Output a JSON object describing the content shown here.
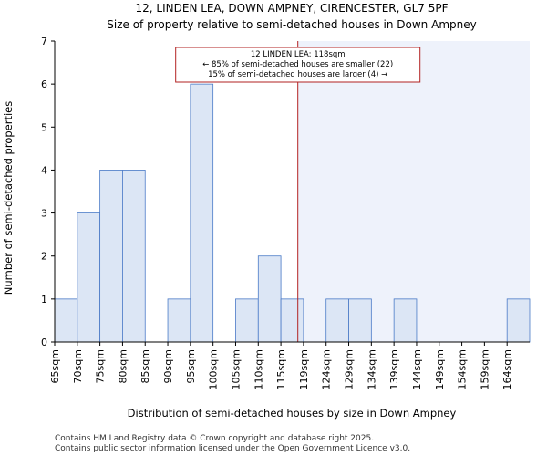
{
  "chart_data": {
    "type": "bar",
    "title": "12, LINDEN LEA, DOWN AMPNEY, CIRENCESTER, GL7 5PF",
    "subtitle": "Size of property relative to semi-detached houses in Down Ampney",
    "xlabel": "Distribution of semi-detached houses by size in Down Ampney",
    "ylabel": "Number of semi-detached properties",
    "categories": [
      "65sqm",
      "70sqm",
      "75sqm",
      "80sqm",
      "85sqm",
      "90sqm",
      "95sqm",
      "100sqm",
      "105sqm",
      "110sqm",
      "115sqm",
      "119sqm",
      "124sqm",
      "129sqm",
      "134sqm",
      "139sqm",
      "144sqm",
      "149sqm",
      "154sqm",
      "159sqm",
      "164sqm"
    ],
    "values": [
      1,
      3,
      4,
      4,
      0,
      1,
      6,
      0,
      1,
      2,
      1,
      0,
      1,
      1,
      0,
      1,
      0,
      0,
      0,
      0,
      1
    ],
    "ylim": [
      0,
      7
    ],
    "yticks": [
      0,
      1,
      2,
      3,
      4,
      5,
      6,
      7
    ],
    "grid": false,
    "bar_color": "#dce6f5",
    "bar_edge_color": "#4a7ac7",
    "highlight_color": "#eef2fb",
    "marker": {
      "value": 118,
      "color": "#b22222",
      "label_lines": [
        "12 LINDEN LEA: 118sqm",
        "← 85% of semi-detached houses are smaller (22)",
        "15% of semi-detached houses are larger (4) →"
      ]
    }
  },
  "footer": {
    "line1": "Contains HM Land Registry data © Crown copyright and database right 2025.",
    "line2": "Contains public sector information licensed under the Open Government Licence v3.0."
  }
}
